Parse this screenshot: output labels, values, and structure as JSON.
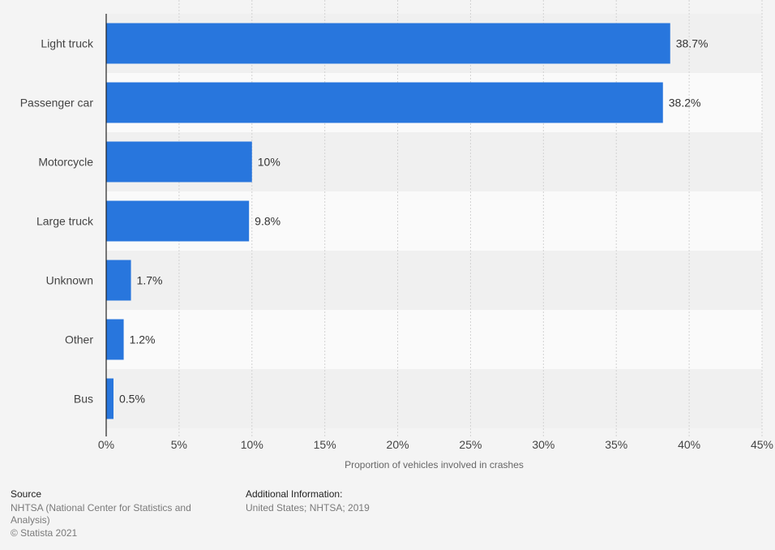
{
  "chart_data": {
    "type": "bar",
    "orientation": "horizontal",
    "categories": [
      "Light truck",
      "Passenger car",
      "Motorcycle",
      "Large truck",
      "Unknown",
      "Other",
      "Bus"
    ],
    "values": [
      38.7,
      38.2,
      10,
      9.8,
      1.7,
      1.2,
      0.5
    ],
    "value_labels": [
      "38.7%",
      "38.2%",
      "10%",
      "9.8%",
      "1.7%",
      "1.2%",
      "0.5%"
    ],
    "xlabel": "Proportion of vehicles involved in crashes",
    "ylabel": "",
    "xlim": [
      0,
      45
    ],
    "x_ticks": [
      0,
      5,
      10,
      15,
      20,
      25,
      30,
      35,
      40,
      45
    ],
    "x_tick_labels": [
      "0%",
      "5%",
      "10%",
      "15%",
      "20%",
      "25%",
      "30%",
      "35%",
      "40%",
      "45%"
    ],
    "grid": true,
    "bar_color": "#2876dd",
    "band_colors": [
      "#f0f0f0",
      "#fafafa"
    ]
  },
  "footer": {
    "source_heading": "Source",
    "source_line1": "NHTSA (National Center for Statistics and",
    "source_line2": "Analysis)",
    "copyright": "© Statista 2021",
    "info_heading": "Additional Information:",
    "info_text": "United States; NHTSA; 2019"
  }
}
